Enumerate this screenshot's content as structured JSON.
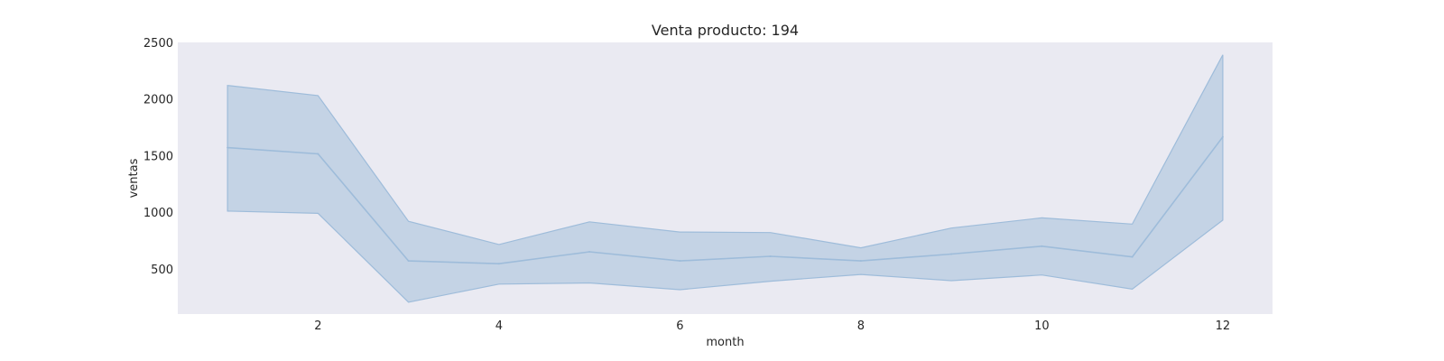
{
  "chart_data": {
    "type": "line",
    "title": "Venta producto: 194",
    "xlabel": "month",
    "ylabel": "ventas",
    "x": [
      1,
      2,
      3,
      4,
      5,
      6,
      7,
      8,
      9,
      10,
      11,
      12
    ],
    "series": [
      {
        "values": [
          1570,
          1515,
          570,
          545,
          650,
          570,
          610,
          570,
          630,
          700,
          605,
          1665
        ],
        "ci_lower": [
          1010,
          990,
          205,
          365,
          375,
          315,
          390,
          450,
          395,
          445,
          320,
          930
        ],
        "ci_upper": [
          2120,
          2030,
          920,
          715,
          915,
          825,
          820,
          685,
          860,
          950,
          895,
          2390
        ]
      }
    ],
    "xlim": [
      0.45,
      12.55
    ],
    "ylim": [
      100,
      2500
    ],
    "xticks": [
      2,
      4,
      6,
      8,
      10,
      12
    ],
    "yticks": [
      500,
      1000,
      1500,
      2000,
      2500
    ],
    "grid": false,
    "colors": {
      "background": "#eaeaf2",
      "line": "#9ebcda",
      "band": "#b7cbe0",
      "band_edge": "#9ebcda"
    }
  }
}
